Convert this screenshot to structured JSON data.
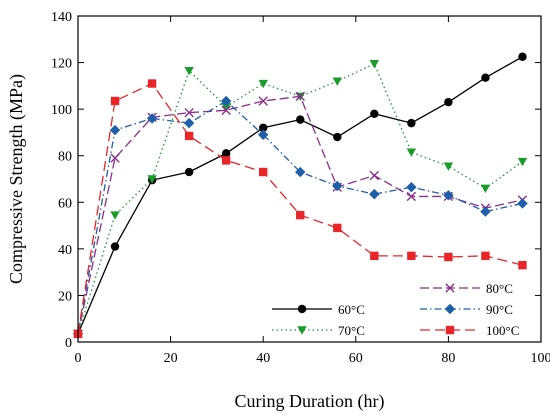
{
  "chart_data": {
    "type": "line",
    "xlabel": "Curing Duration (hr)",
    "ylabel": "Compressive Strength (MPa)",
    "xlim": [
      0,
      100
    ],
    "ylim": [
      0,
      140
    ],
    "xticks": [
      "0",
      "20",
      "40",
      "60",
      "80",
      "100"
    ],
    "yticks": [
      "0",
      "20",
      "40",
      "60",
      "80",
      "100",
      "120",
      "140"
    ],
    "grid": false,
    "legend_position": "bottom-right",
    "series": [
      {
        "name": "60°C",
        "color": "#000000",
        "marker": "circle",
        "dash": "solid",
        "points": [
          [
            0,
            3.5
          ],
          [
            8,
            41
          ],
          [
            16,
            69.5
          ],
          [
            24,
            73
          ],
          [
            32,
            81
          ],
          [
            40,
            92
          ],
          [
            48,
            95.5
          ],
          [
            56,
            88
          ],
          [
            64,
            98
          ],
          [
            72,
            94
          ],
          [
            80,
            103
          ],
          [
            88,
            113.5
          ],
          [
            96,
            122.5
          ]
        ]
      },
      {
        "name": "70°C",
        "color": "#1a9b2c",
        "marker": "triangle-down",
        "dash": "dotted",
        "points": [
          [
            0,
            3.5
          ],
          [
            8,
            54.5
          ],
          [
            16,
            70
          ],
          [
            24,
            116.5
          ],
          [
            32,
            101
          ],
          [
            40,
            111
          ],
          [
            48,
            105.5
          ],
          [
            56,
            112
          ],
          [
            64,
            119.5
          ],
          [
            72,
            81.5
          ],
          [
            80,
            75.5
          ],
          [
            88,
            66
          ],
          [
            96,
            77.5
          ]
        ]
      },
      {
        "name": "80°C",
        "color": "#8b2f8b",
        "marker": "x",
        "dash": "long-dash",
        "points": [
          [
            0,
            3.5
          ],
          [
            8,
            79
          ],
          [
            16,
            96.5
          ],
          [
            24,
            98.5
          ],
          [
            32,
            99.5
          ],
          [
            40,
            103.5
          ],
          [
            48,
            105.5
          ],
          [
            56,
            66.5
          ],
          [
            64,
            71.5
          ],
          [
            72,
            62.5
          ],
          [
            80,
            62.5
          ],
          [
            88,
            57.5
          ],
          [
            96,
            61
          ]
        ]
      },
      {
        "name": "90°C",
        "color": "#1f5fa8",
        "marker": "diamond",
        "dash": "dash-dot",
        "points": [
          [
            0,
            3.5
          ],
          [
            8,
            91
          ],
          [
            16,
            96
          ],
          [
            24,
            94
          ],
          [
            32,
            103.5
          ],
          [
            40,
            89
          ],
          [
            48,
            73
          ],
          [
            56,
            67
          ],
          [
            64,
            63.5
          ],
          [
            72,
            66.5
          ],
          [
            80,
            63
          ],
          [
            88,
            56
          ],
          [
            96,
            59.5
          ]
        ]
      },
      {
        "name": "100°C",
        "color": "#e8262a",
        "marker": "square",
        "dash": "dashed",
        "points": [
          [
            0,
            3.5
          ],
          [
            8,
            103.5
          ],
          [
            16,
            111
          ],
          [
            24,
            88.5
          ],
          [
            32,
            78
          ],
          [
            40,
            73
          ],
          [
            48,
            54.5
          ],
          [
            56,
            49
          ],
          [
            64,
            37
          ],
          [
            72,
            37
          ],
          [
            80,
            36.5
          ],
          [
            88,
            37
          ],
          [
            96,
            33
          ]
        ]
      }
    ]
  }
}
